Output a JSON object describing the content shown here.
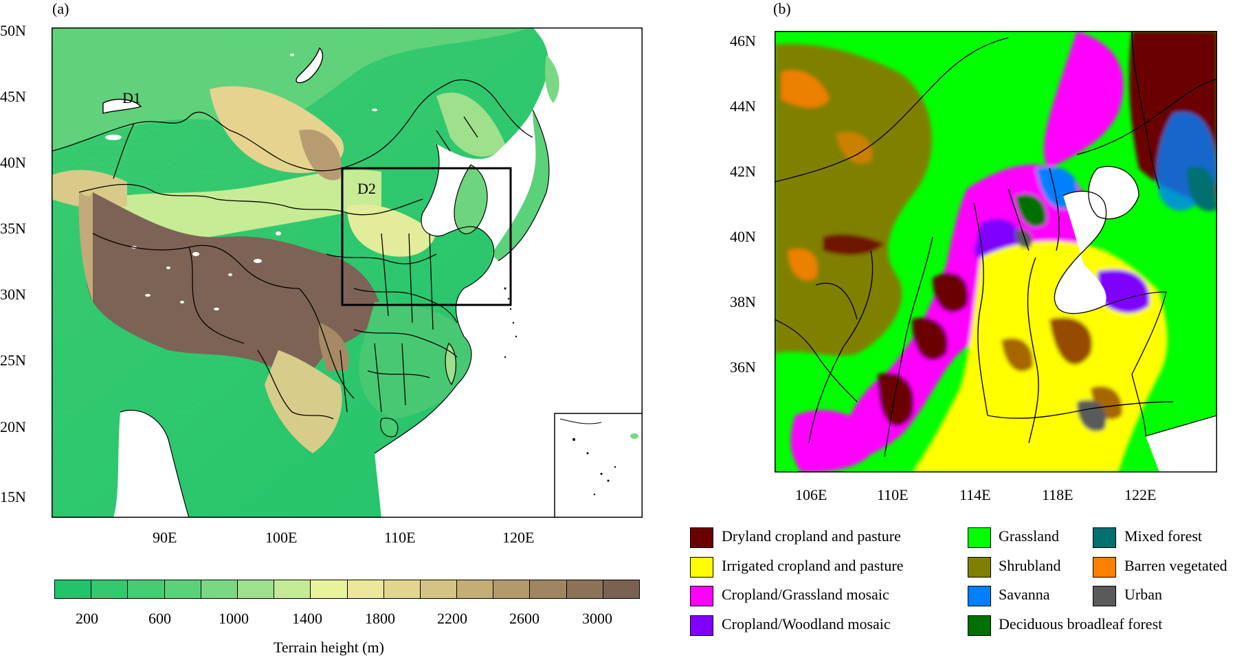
{
  "panel_a": {
    "label": "(a)",
    "domain_labels": [
      "D1",
      "D2"
    ],
    "lat_ticks": [
      "50N",
      "45N",
      "40N",
      "35N",
      "30N",
      "25N",
      "20N",
      "15N"
    ],
    "lon_ticks": [
      "90E",
      "100E",
      "110E",
      "120E"
    ],
    "colorbar": {
      "title": "Terrain height (m)",
      "tick_labels": [
        "200",
        "600",
        "1000",
        "1400",
        "1800",
        "2200",
        "2600",
        "3000"
      ],
      "colors": [
        "#21c46b",
        "#33c96f",
        "#46cd74",
        "#5bd27a",
        "#7ad884",
        "#9ee08c",
        "#c4ea96",
        "#e8f49c",
        "#ece79a",
        "#e2d68f",
        "#d4c383",
        "#c4ae76",
        "#b29a6a",
        "#9f8660",
        "#8c7358",
        "#7a6152"
      ]
    },
    "colors": {
      "ocean": "#ffffff",
      "plateau": "#7d6355",
      "lowland": "#1fc46a"
    }
  },
  "panel_b": {
    "label": "(b)",
    "lat_ticks": [
      "46N",
      "44N",
      "42N",
      "40N",
      "38N",
      "36N"
    ],
    "lon_ticks": [
      "106E",
      "110E",
      "114E",
      "118E",
      "122E"
    ]
  },
  "legend": [
    {
      "label": "Dryland cropland and pasture",
      "color": "#6b0000"
    },
    {
      "label": "Irrigated cropland and pasture",
      "color": "#ffff00"
    },
    {
      "label": "Cropland/Grassland mosaic",
      "color": "#ff00ff"
    },
    {
      "label": "Cropland/Woodland mosaic",
      "color": "#8000ff"
    },
    {
      "label": "Grassland",
      "color": "#00ff00"
    },
    {
      "label": "Shrubland",
      "color": "#808000"
    },
    {
      "label": "Savanna",
      "color": "#0080ff"
    },
    {
      "label": "Deciduous broadleaf forest",
      "color": "#007000"
    },
    {
      "label": "Mixed forest",
      "color": "#007070"
    },
    {
      "label": "Barren vegetated",
      "color": "#ff8000"
    },
    {
      "label": "Urban",
      "color": "#5a5a5a"
    }
  ]
}
